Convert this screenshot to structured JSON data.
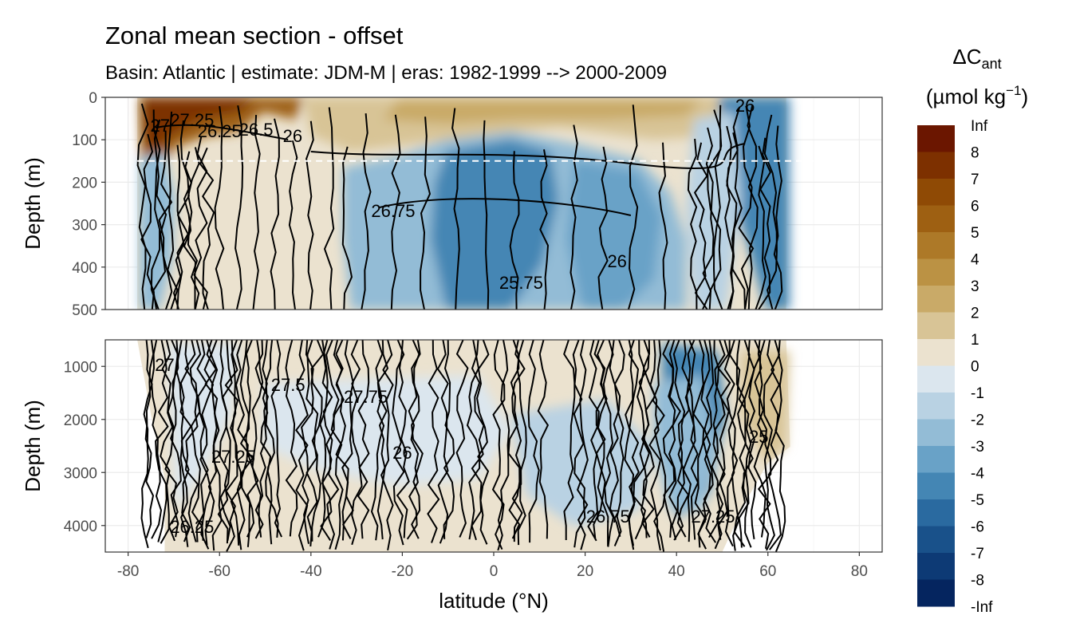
{
  "chart_data": {
    "type": "heatmap",
    "title": "Zonal mean section - offset",
    "subtitle": "Basin: Atlantic | estimate: JDM-M | eras: 1982-1999 --> 2000-2009",
    "xlabel": "latitude (°N)",
    "ylabel": "Depth (m)",
    "x_ticks": [
      "-80",
      "-60",
      "-40",
      "-20",
      "0",
      "20",
      "40",
      "60",
      "80"
    ],
    "x_tick_values": [
      -80,
      -60,
      -40,
      -20,
      0,
      20,
      40,
      60,
      80
    ],
    "xlim": [
      -85,
      85
    ],
    "grid": true,
    "panels": [
      {
        "ylim": [
          0,
          500
        ],
        "y_ticks": [
          "0",
          "100",
          "200",
          "300",
          "400",
          "500"
        ],
        "y_tick_values": [
          0,
          100,
          200,
          300,
          400,
          500
        ],
        "reference_depth": 150
      },
      {
        "ylim": [
          500,
          4500
        ],
        "y_ticks": [
          "1000",
          "2000",
          "3000",
          "4000"
        ],
        "y_tick_values": [
          1000,
          2000,
          3000,
          4000
        ]
      }
    ],
    "data_extent": {
      "lat_min": -78,
      "lat_max": 64
    },
    "legend": {
      "title_main": "ΔC",
      "title_sub": "ant",
      "title_units": "(µmol kg",
      "title_units_sup": "−1",
      "title_units_end": ")",
      "placement": "right",
      "labels": [
        "Inf",
        "8",
        "7",
        "6",
        "5",
        "4",
        "3",
        "2",
        "1",
        "0",
        "-1",
        "-2",
        "-3",
        "-4",
        "-5",
        "-6",
        "-7",
        "-8",
        "-Inf"
      ],
      "colors": [
        "#6b1600",
        "#7d3000",
        "#8f4a05",
        "#9e6012",
        "#ad7928",
        "#bb9244",
        "#c9aa68",
        "#d8c496",
        "#ebe2cf",
        "#dbe6ee",
        "#b9d2e3",
        "#93bcd6",
        "#69a2c7",
        "#4486b4",
        "#2a6aa0",
        "#19518a",
        "#0d3a75",
        "#05255f"
      ]
    },
    "contour_labels_top": [
      "27",
      "27.25",
      "26.5",
      "26.25",
      "26",
      "26.75",
      "26",
      "25.75",
      "26"
    ],
    "contour_labels_bottom": [
      "27",
      "27.25",
      "27.5",
      "27.75",
      "26",
      "26.75",
      "27.25",
      "26.25",
      "25"
    ]
  }
}
